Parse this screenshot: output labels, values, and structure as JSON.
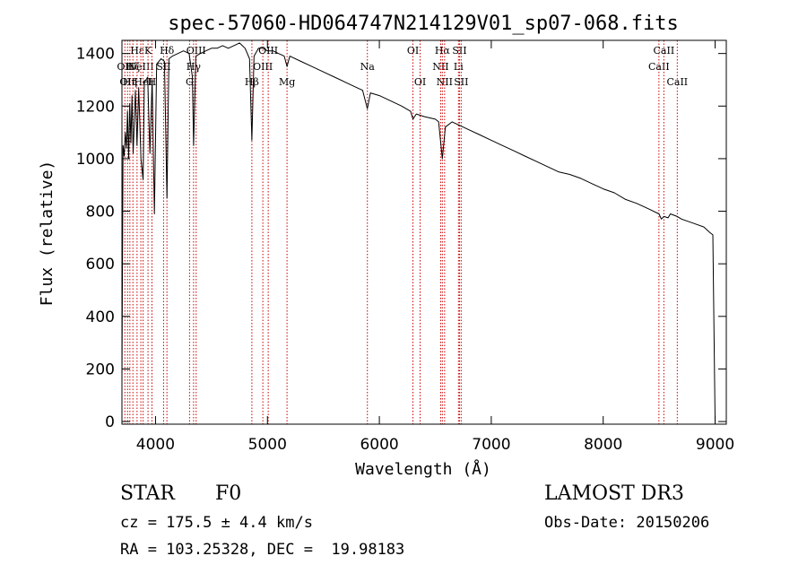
{
  "chart_data": {
    "type": "line",
    "title": "spec-57060-HD064747N214129V01_sp07-068.fits",
    "xlabel": "Wavelength (Å)",
    "ylabel": "Flux (relative)",
    "xlim": [
      3700,
      9100
    ],
    "ylim": [
      -10,
      1450
    ],
    "xticks": [
      4000,
      5000,
      6000,
      7000,
      8000,
      9000
    ],
    "yticks": [
      0,
      200,
      400,
      600,
      800,
      1000,
      1200,
      1400
    ],
    "series": [
      {
        "name": "flux",
        "x": [
          3700,
          3710,
          3720,
          3730,
          3740,
          3750,
          3760,
          3770,
          3780,
          3790,
          3800,
          3820,
          3835,
          3850,
          3870,
          3889,
          3900,
          3930,
          3950,
          3970,
          3990,
          4010,
          4050,
          4080,
          4102,
          4120,
          4150,
          4200,
          4250,
          4300,
          4330,
          4340,
          4360,
          4400,
          4450,
          4500,
          4550,
          4600,
          4650,
          4700,
          4750,
          4800,
          4840,
          4861,
          4880,
          4920,
          4960,
          5000,
          5050,
          5100,
          5150,
          5175,
          5200,
          5300,
          5400,
          5500,
          5600,
          5700,
          5800,
          5850,
          5893,
          5920,
          6000,
          6100,
          6200,
          6280,
          6300,
          6330,
          6400,
          6500,
          6530,
          6563,
          6590,
          6650,
          6700,
          6800,
          6900,
          7000,
          7100,
          7200,
          7300,
          7400,
          7500,
          7600,
          7700,
          7800,
          7900,
          8000,
          8100,
          8200,
          8300,
          8400,
          8498,
          8520,
          8542,
          8580,
          8600,
          8662,
          8700,
          8800,
          8900,
          8950,
          8980,
          9000
        ],
        "values": [
          150,
          1050,
          1010,
          1100,
          1040,
          1180,
          1000,
          1210,
          1060,
          1240,
          1020,
          1260,
          1050,
          1270,
          1000,
          920,
          1290,
          1310,
          1020,
          1300,
          790,
          1360,
          1380,
          1370,
          850,
          1380,
          1390,
          1400,
          1410,
          1400,
          1310,
          1050,
          1390,
          1400,
          1410,
          1420,
          1420,
          1430,
          1420,
          1430,
          1440,
          1420,
          1380,
          1070,
          1390,
          1420,
          1420,
          1410,
          1410,
          1400,
          1390,
          1350,
          1390,
          1370,
          1350,
          1330,
          1310,
          1290,
          1270,
          1260,
          1190,
          1250,
          1240,
          1220,
          1200,
          1180,
          1150,
          1170,
          1160,
          1150,
          1140,
          1000,
          1120,
          1140,
          1130,
          1110,
          1090,
          1070,
          1050,
          1030,
          1010,
          990,
          970,
          950,
          940,
          925,
          905,
          885,
          870,
          845,
          830,
          810,
          790,
          770,
          780,
          775,
          790,
          780,
          770,
          755,
          740,
          720,
          710,
          0
        ]
      }
    ],
    "line_markers": [
      {
        "wl": 3726,
        "name": "OII",
        "tier": 1
      },
      {
        "wl": 3750,
        "name": "OII",
        "tier": 2
      },
      {
        "wl": 3771,
        "name": "Hη",
        "tier": 2
      },
      {
        "wl": 3798,
        "name": "Hζ",
        "tier": 1
      },
      {
        "wl": 3835,
        "name": "Hε",
        "tier": 0
      },
      {
        "wl": 3869,
        "name": "NeIII",
        "tier": 1
      },
      {
        "wl": 3889,
        "name": "HeI",
        "tier": 2
      },
      {
        "wl": 3933,
        "name": "K",
        "tier": 0
      },
      {
        "wl": 3968,
        "name": "H",
        "tier": 2
      },
      {
        "wl": 4072,
        "name": "SII",
        "tier": 1
      },
      {
        "wl": 4102,
        "name": "Hδ",
        "tier": 0
      },
      {
        "wl": 4304,
        "name": "G",
        "tier": 2
      },
      {
        "wl": 4340,
        "name": "Hγ",
        "tier": 1
      },
      {
        "wl": 4363,
        "name": "OIII",
        "tier": 0
      },
      {
        "wl": 4861,
        "name": "Hβ",
        "tier": 2
      },
      {
        "wl": 4959,
        "name": "OIII",
        "tier": 1
      },
      {
        "wl": 5007,
        "name": "OIII",
        "tier": 0
      },
      {
        "wl": 5175,
        "name": "Mg",
        "tier": 2
      },
      {
        "wl": 5893,
        "name": "Na",
        "tier": 1
      },
      {
        "wl": 6300,
        "name": "OI",
        "tier": 0
      },
      {
        "wl": 6364,
        "name": "OI",
        "tier": 2
      },
      {
        "wl": 6548,
        "name": "NII",
        "tier": 1
      },
      {
        "wl": 6563,
        "name": "Hα",
        "tier": 0
      },
      {
        "wl": 6583,
        "name": "NII",
        "tier": 2
      },
      {
        "wl": 6707,
        "name": "Li",
        "tier": 1
      },
      {
        "wl": 6716,
        "name": "SII",
        "tier": 0
      },
      {
        "wl": 6731,
        "name": "SII",
        "tier": 2
      },
      {
        "wl": 8498,
        "name": "CaII",
        "tier": 1
      },
      {
        "wl": 8542,
        "name": "CaII",
        "tier": 0
      },
      {
        "wl": 8662,
        "name": "CaII",
        "tier": 2
      }
    ]
  },
  "info": {
    "object": "STAR",
    "subclass": "F0",
    "cz": "cz = 175.5 ± 4.4 km/s",
    "radec": "RA = 103.25328, DEC =  19.98183",
    "survey": "LAMOST DR3",
    "obsdate": "Obs-Date: 20150206"
  },
  "colors": {
    "line": "#000000",
    "marker": "#cc0000"
  }
}
